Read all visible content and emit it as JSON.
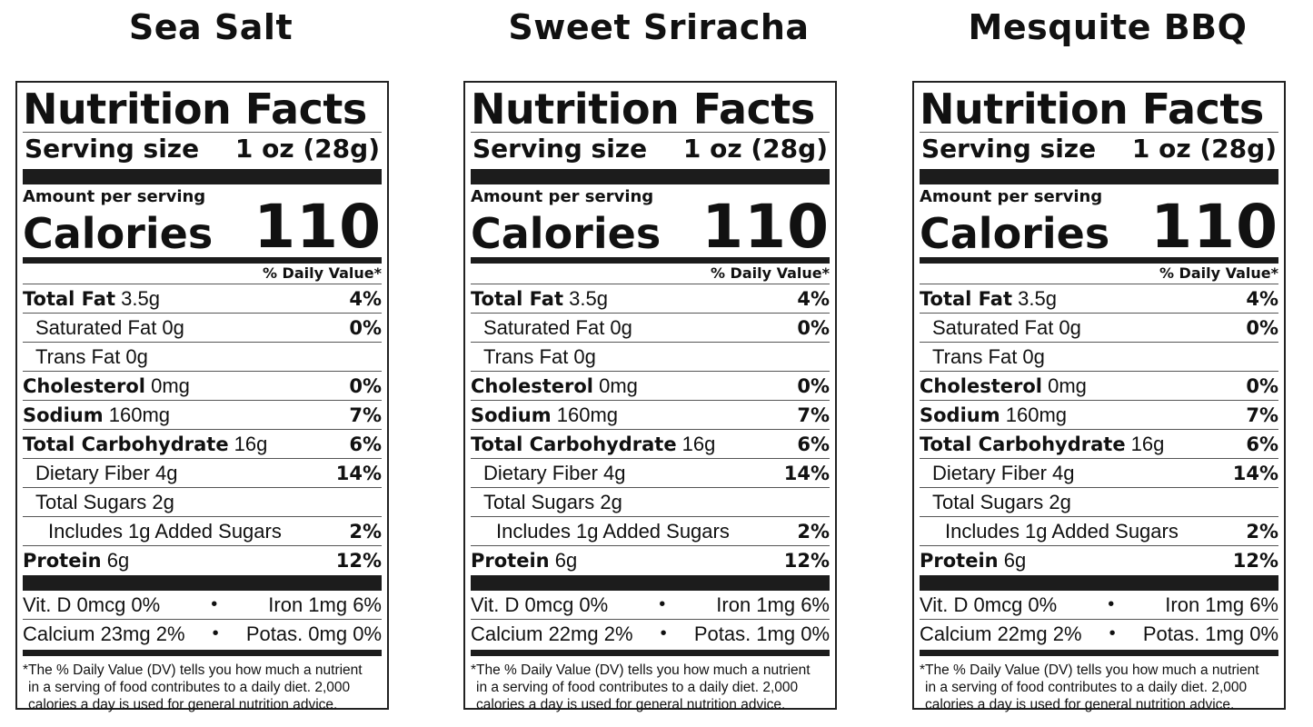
{
  "labels": [
    {
      "flavor": "Sea Salt",
      "heading": "Nutrition Facts",
      "serving_label": "Serving size",
      "serving_value": "1 oz (28g)",
      "amount_label": "Amount per serving",
      "calories_label": "Calories",
      "calories_value": "110",
      "dv_header": "% Daily Value*",
      "rows": [
        {
          "bold": "Total Fat",
          "amount": " 3.5g",
          "pct": "4%"
        },
        {
          "bold": "",
          "amount": "Saturated Fat 0g",
          "pct": "0%"
        },
        {
          "bold": "",
          "amount": "Trans Fat 0g",
          "pct": ""
        },
        {
          "bold": "Cholesterol",
          "amount": " 0mg",
          "pct": "0%"
        },
        {
          "bold": "Sodium",
          "amount": " 160mg",
          "pct": "7%"
        },
        {
          "bold": "Total Carbohydrate",
          "amount": " 16g",
          "pct": "6%"
        },
        {
          "bold": "",
          "amount": "Dietary Fiber 4g",
          "pct": "14%"
        },
        {
          "bold": "",
          "amount": "Total Sugars 2g",
          "pct": ""
        },
        {
          "bold": "",
          "amount": "Includes 1g Added Sugars",
          "pct": "2%"
        },
        {
          "bold": "Protein",
          "amount": " 6g",
          "pct": "12%"
        }
      ],
      "vit_d": "Vit. D 0mcg 0%",
      "iron": "Iron 1mg 6%",
      "calcium": "Calcium 23mg 2%",
      "potassium": "Potas. 0mg 0%",
      "bullet": "•",
      "footnote_1": "*The % Daily Value (DV) tells you how much a nutrient",
      "footnote_2": "in a serving of food contributes to a daily diet. 2,000",
      "footnote_3": "calories a day is used for general nutrition advice."
    },
    {
      "flavor": "Sweet Sriracha",
      "heading": "Nutrition Facts",
      "serving_label": "Serving size",
      "serving_value": "1 oz (28g)",
      "amount_label": "Amount per serving",
      "calories_label": "Calories",
      "calories_value": "110",
      "dv_header": "% Daily Value*",
      "rows": [
        {
          "bold": "Total Fat",
          "amount": " 3.5g",
          "pct": "4%"
        },
        {
          "bold": "",
          "amount": "Saturated Fat 0g",
          "pct": "0%"
        },
        {
          "bold": "",
          "amount": "Trans Fat 0g",
          "pct": ""
        },
        {
          "bold": "Cholesterol",
          "amount": " 0mg",
          "pct": "0%"
        },
        {
          "bold": "Sodium",
          "amount": " 160mg",
          "pct": "7%"
        },
        {
          "bold": "Total Carbohydrate",
          "amount": " 16g",
          "pct": "6%"
        },
        {
          "bold": "",
          "amount": "Dietary Fiber 4g",
          "pct": "14%"
        },
        {
          "bold": "",
          "amount": "Total Sugars 2g",
          "pct": ""
        },
        {
          "bold": "",
          "amount": "Includes 1g Added Sugars",
          "pct": "2%"
        },
        {
          "bold": "Protein",
          "amount": " 6g",
          "pct": "12%"
        }
      ],
      "vit_d": "Vit. D 0mcg 0%",
      "iron": "Iron 1mg 6%",
      "calcium": "Calcium 22mg 2%",
      "potassium": "Potas. 1mg 0%",
      "bullet": "•",
      "footnote_1": "*The % Daily Value (DV) tells you how much a nutrient",
      "footnote_2": "in a serving of food contributes to a daily diet. 2,000",
      "footnote_3": "calories a day is used for general nutrition advice."
    },
    {
      "flavor": "Mesquite BBQ",
      "heading": "Nutrition Facts",
      "serving_label": "Serving size",
      "serving_value": "1 oz (28g)",
      "amount_label": "Amount per serving",
      "calories_label": "Calories",
      "calories_value": "110",
      "dv_header": "% Daily Value*",
      "rows": [
        {
          "bold": "Total Fat",
          "amount": " 3.5g",
          "pct": "4%"
        },
        {
          "bold": "",
          "amount": "Saturated Fat 0g",
          "pct": "0%"
        },
        {
          "bold": "",
          "amount": "Trans Fat 0g",
          "pct": ""
        },
        {
          "bold": "Cholesterol",
          "amount": " 0mg",
          "pct": "0%"
        },
        {
          "bold": "Sodium",
          "amount": " 160mg",
          "pct": "7%"
        },
        {
          "bold": "Total Carbohydrate",
          "amount": " 16g",
          "pct": "6%"
        },
        {
          "bold": "",
          "amount": "Dietary Fiber 4g",
          "pct": "14%"
        },
        {
          "bold": "",
          "amount": "Total Sugars 2g",
          "pct": ""
        },
        {
          "bold": "",
          "amount": "Includes 1g Added Sugars",
          "pct": "2%"
        },
        {
          "bold": "Protein",
          "amount": " 6g",
          "pct": "12%"
        }
      ],
      "vit_d": "Vit. D 0mcg 0%",
      "iron": "Iron 1mg 6%",
      "calcium": "Calcium 22mg 2%",
      "potassium": "Potas. 1mg 0%",
      "bullet": "•",
      "footnote_1": "*The % Daily Value (DV) tells you how much a nutrient",
      "footnote_2": "in a serving of food contributes to a daily diet. 2,000",
      "footnote_3": "calories a day is used for general nutrition advice."
    }
  ]
}
